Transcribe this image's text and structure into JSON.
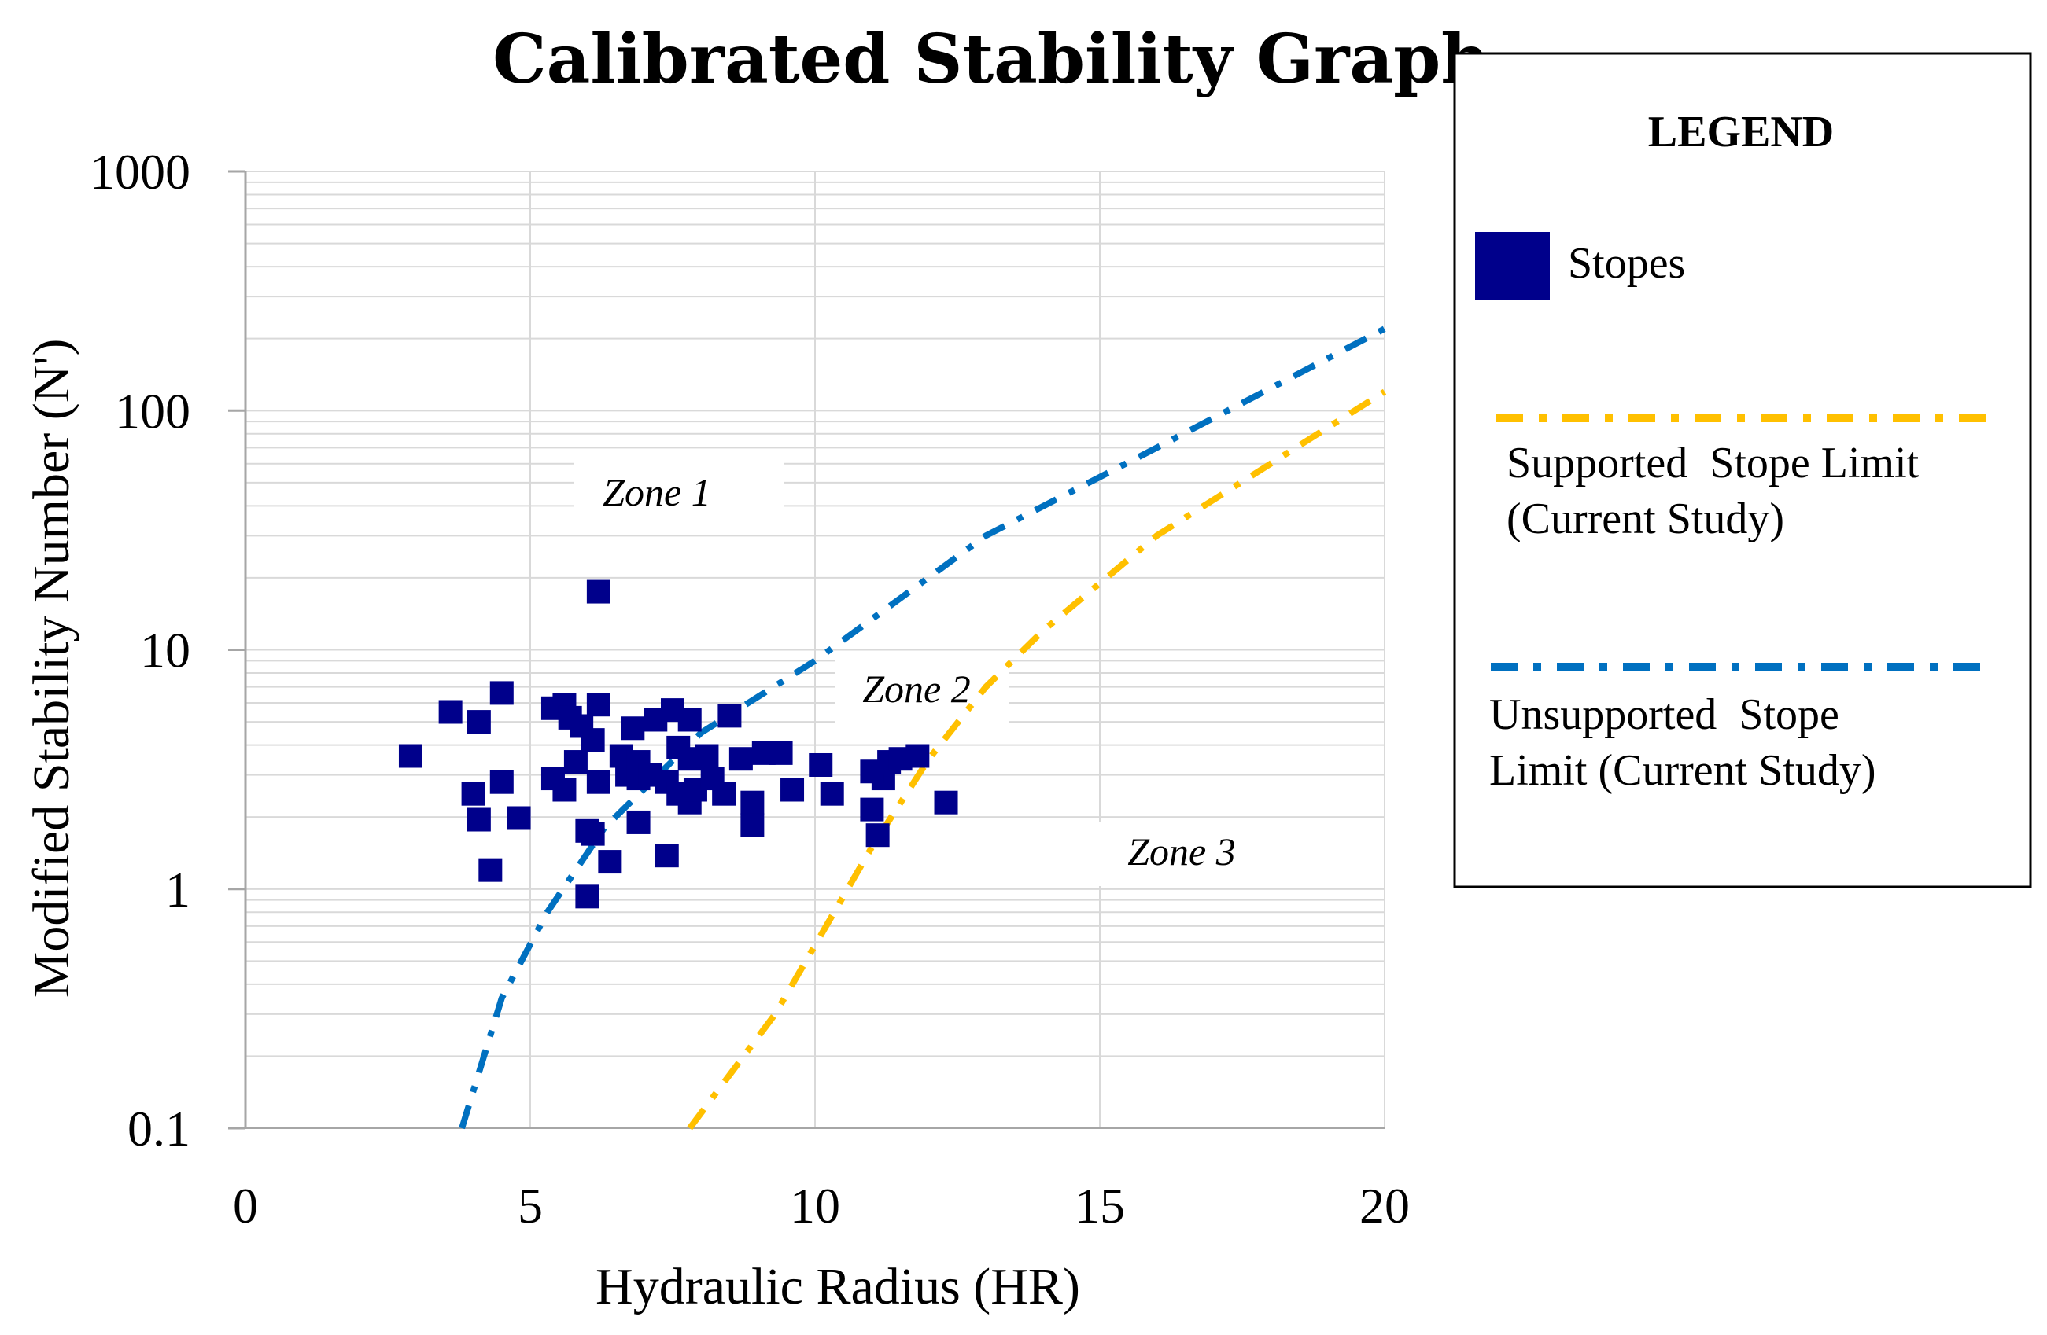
{
  "colors": {
    "stopes": "#00008B",
    "supported": "#FFC000",
    "unsupported": "#0070C0",
    "grid": "#D9D9D9",
    "axis": "#A6A6A6"
  },
  "chart_data": {
    "type": "scatter",
    "title": "Calibrated Stability Graph",
    "xlabel": "Hydraulic Radius (HR)",
    "ylabel": "Modified Stability Number (N')",
    "xlim": [
      0,
      20
    ],
    "ylim": [
      0.1,
      1000
    ],
    "yscale": "log",
    "xticks": [
      0,
      5,
      10,
      15,
      20
    ],
    "xtick_labels": [
      "0",
      "5",
      "10",
      "15",
      "20"
    ],
    "yticks": [
      0.1,
      1,
      10,
      100,
      1000
    ],
    "ytick_labels": [
      "0.1",
      "1",
      "10",
      "100",
      "1000"
    ],
    "grid": true,
    "legend": {
      "title": "LEGEND",
      "position": "right",
      "entries": [
        {
          "label": "Stopes"
        },
        {
          "label_lines": [
            "Supported  Stope Limit",
            "(Current Study)"
          ]
        },
        {
          "label_lines": [
            "Unsupported  Stope",
            "Limit (Current Study)"
          ]
        }
      ]
    },
    "annotations": [
      {
        "text": "Zone 1",
        "x": 7.3,
        "y": 30
      },
      {
        "text": "Zone 2",
        "x": 11.8,
        "y": 6.1
      },
      {
        "text": "Zone 3",
        "x": 16.5,
        "y": 1.25
      }
    ],
    "series": [
      {
        "name": "Stopes",
        "kind": "scatter",
        "points": [
          [
            2.9,
            3.6
          ],
          [
            3.6,
            5.5
          ],
          [
            4.1,
            5.0
          ],
          [
            4.5,
            6.6
          ],
          [
            4.0,
            2.5
          ],
          [
            4.5,
            2.8
          ],
          [
            4.1,
            1.95
          ],
          [
            4.8,
            1.98
          ],
          [
            4.3,
            1.2
          ],
          [
            5.4,
            5.7
          ],
          [
            5.6,
            5.9
          ],
          [
            5.7,
            5.2
          ],
          [
            5.9,
            4.8
          ],
          [
            6.2,
            5.9
          ],
          [
            6.1,
            4.2
          ],
          [
            5.8,
            3.4
          ],
          [
            5.4,
            2.9
          ],
          [
            5.6,
            2.6
          ],
          [
            6.2,
            2.8
          ],
          [
            6.0,
            1.75
          ],
          [
            6.1,
            1.7
          ],
          [
            6.4,
            1.3
          ],
          [
            6.0,
            0.93
          ],
          [
            6.2,
            17.5
          ],
          [
            6.6,
            3.6
          ],
          [
            6.7,
            3.0
          ],
          [
            6.9,
            3.4
          ],
          [
            6.8,
            4.7
          ],
          [
            6.9,
            2.9
          ],
          [
            7.1,
            3.0
          ],
          [
            7.2,
            5.1
          ],
          [
            7.5,
            5.6
          ],
          [
            7.8,
            5.1
          ],
          [
            7.6,
            3.9
          ],
          [
            7.8,
            3.5
          ],
          [
            7.4,
            2.8
          ],
          [
            7.6,
            2.5
          ],
          [
            7.8,
            2.3
          ],
          [
            7.9,
            2.6
          ],
          [
            8.1,
            3.6
          ],
          [
            8.2,
            2.9
          ],
          [
            8.4,
            2.5
          ],
          [
            8.5,
            5.3
          ],
          [
            8.7,
            3.5
          ],
          [
            8.9,
            2.3
          ],
          [
            8.9,
            1.85
          ],
          [
            6.9,
            1.9
          ],
          [
            7.4,
            1.38
          ],
          [
            9.1,
            3.7
          ],
          [
            9.4,
            3.7
          ],
          [
            9.6,
            2.6
          ],
          [
            10.1,
            3.3
          ],
          [
            10.3,
            2.5
          ],
          [
            11.0,
            2.15
          ],
          [
            11.1,
            1.68
          ],
          [
            11.2,
            2.9
          ],
          [
            11.0,
            3.1
          ],
          [
            11.3,
            3.4
          ],
          [
            11.5,
            3.5
          ],
          [
            11.8,
            3.6
          ],
          [
            12.3,
            2.3
          ]
        ]
      },
      {
        "name": "Supported Stope Limit (Current Study)",
        "kind": "line",
        "points": [
          [
            7.8,
            0.1
          ],
          [
            9.3,
            0.3
          ],
          [
            11.0,
            1.5
          ],
          [
            12.0,
            3.5
          ],
          [
            13.0,
            7.0
          ],
          [
            14.0,
            12.0
          ],
          [
            16.0,
            30.0
          ],
          [
            18.0,
            60.0
          ],
          [
            20.0,
            120.0
          ]
        ]
      },
      {
        "name": "Unsupported Stope Limit (Current Study)",
        "kind": "line",
        "points": [
          [
            3.8,
            0.1
          ],
          [
            4.5,
            0.35
          ],
          [
            5.3,
            0.8
          ],
          [
            6.3,
            1.8
          ],
          [
            8.0,
            4.5
          ],
          [
            10.0,
            9.0
          ],
          [
            13.0,
            30.0
          ],
          [
            16.0,
            70.0
          ],
          [
            20.0,
            220.0
          ]
        ]
      }
    ]
  }
}
